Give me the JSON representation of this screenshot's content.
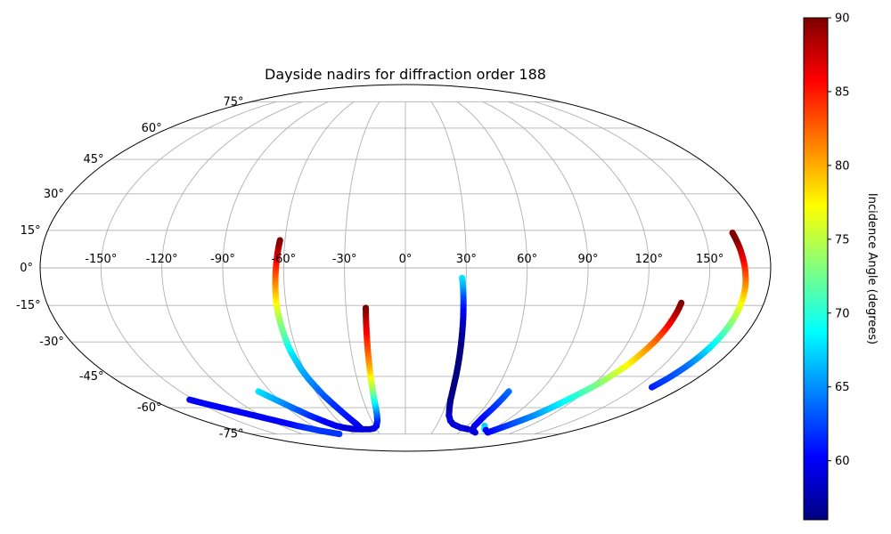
{
  "chart_data": {
    "type": "scatter",
    "projection": "mollweide",
    "title": "Dayside nadirs for diffraction order 188",
    "grid": true,
    "x_ticks": [
      "-150°",
      "-120°",
      "-90°",
      "-60°",
      "-30°",
      "0°",
      "30°",
      "60°",
      "90°",
      "120°",
      "150°"
    ],
    "y_ticks": [
      "75°",
      "60°",
      "45°",
      "30°",
      "15°",
      "0°",
      "-15°",
      "-30°",
      "-45°",
      "-60°",
      "-75°"
    ],
    "xlim": [
      -180,
      180
    ],
    "ylim": [
      -90,
      90
    ],
    "colorbar": {
      "label": "Incidence Angle (degrees)",
      "range": [
        56,
        90
      ],
      "ticks": [
        "60",
        "65",
        "70",
        "75",
        "80",
        "85",
        "90"
      ],
      "colormap": "jet"
    },
    "tracks": [
      {
        "points": [
          [
            -153,
            -56,
            60
          ],
          [
            -147,
            -58,
            60
          ],
          [
            -140,
            -60,
            60
          ],
          [
            -133,
            -62,
            60
          ],
          [
            -126,
            -64,
            60
          ],
          [
            -119,
            -66,
            60
          ],
          [
            -112,
            -68,
            60
          ],
          [
            -105,
            -70,
            61
          ],
          [
            -98,
            -71.5,
            62
          ],
          [
            -91,
            -73,
            62
          ],
          [
            -84,
            -74,
            62
          ],
          [
            -77,
            -75,
            62
          ]
        ]
      },
      {
        "points": [
          [
            -98,
            -52,
            68
          ],
          [
            -95,
            -54,
            67
          ],
          [
            -92,
            -56,
            66
          ],
          [
            -89,
            -58,
            65
          ],
          [
            -86,
            -60,
            64
          ],
          [
            -83,
            -62,
            63
          ],
          [
            -80,
            -64,
            62
          ],
          [
            -76,
            -66,
            61
          ],
          [
            -72,
            -68,
            60
          ],
          [
            -67,
            -70,
            60
          ],
          [
            -62,
            -71,
            59
          ],
          [
            -57,
            -71.5,
            59
          ],
          [
            -52,
            -72,
            59
          ],
          [
            -47,
            -72,
            59
          ],
          [
            -42,
            -72,
            59
          ],
          [
            -37,
            -72,
            59
          ],
          [
            -32,
            -71.5,
            59
          ],
          [
            -28,
            -70,
            60
          ],
          [
            -25,
            -67,
            61
          ],
          [
            -23.5,
            -64,
            63
          ],
          [
            -22.5,
            -60,
            66
          ],
          [
            -22,
            -55,
            70
          ],
          [
            -21.5,
            -50,
            74
          ],
          [
            -21.3,
            -45,
            77
          ],
          [
            -21,
            -40,
            80
          ],
          [
            -20.8,
            -35,
            82
          ],
          [
            -20.6,
            -30,
            84
          ],
          [
            -20.4,
            -25,
            86
          ],
          [
            -20.2,
            -20,
            88
          ],
          [
            -20,
            -16,
            90
          ]
        ]
      },
      {
        "points": [
          [
            -45,
            -72,
            59
          ],
          [
            -46,
            -69,
            59.5
          ],
          [
            -48,
            -66,
            60.5
          ],
          [
            -50,
            -63,
            61
          ],
          [
            -52,
            -60,
            61.5
          ],
          [
            -54,
            -57,
            62
          ],
          [
            -56,
            -54,
            63
          ],
          [
            -58,
            -50,
            64
          ],
          [
            -60,
            -46,
            65
          ],
          [
            -61.5,
            -42,
            66
          ],
          [
            -62.5,
            -38,
            67
          ],
          [
            -63.5,
            -34,
            68
          ],
          [
            -64,
            -30,
            70
          ],
          [
            -64.3,
            -26,
            72
          ],
          [
            -64.6,
            -22,
            73
          ],
          [
            -64.8,
            -18,
            75
          ],
          [
            -64.8,
            -14,
            77
          ],
          [
            -64.6,
            -10,
            79
          ],
          [
            -64.3,
            -6,
            81
          ],
          [
            -64,
            -2,
            83
          ],
          [
            -63.6,
            2,
            85
          ],
          [
            -63.2,
            6,
            87
          ],
          [
            -62.8,
            9,
            89
          ],
          [
            -62.5,
            11,
            90
          ]
        ]
      },
      {
        "points": [
          [
            28,
            -4,
            68
          ],
          [
            28.6,
            -8,
            66
          ],
          [
            29,
            -12,
            63
          ],
          [
            29.3,
            -16,
            61
          ],
          [
            29.6,
            -20,
            59
          ],
          [
            29.8,
            -24,
            58
          ],
          [
            30,
            -28,
            57
          ],
          [
            30.2,
            -32,
            56
          ],
          [
            30.4,
            -36,
            56
          ],
          [
            30.6,
            -40,
            56
          ],
          [
            30.8,
            -44,
            56
          ],
          [
            31,
            -48,
            56
          ],
          [
            31.4,
            -52,
            56
          ],
          [
            32,
            -56,
            56
          ],
          [
            33.5,
            -60,
            57
          ],
          [
            36,
            -64,
            58
          ],
          [
            40,
            -67,
            59
          ],
          [
            45,
            -69,
            59
          ],
          [
            50,
            -70,
            59
          ],
          [
            55,
            -71,
            59
          ],
          [
            60,
            -71.5,
            59
          ],
          [
            65,
            -72,
            59
          ]
        ]
      },
      {
        "points": [
          [
            69,
            -52,
            64
          ],
          [
            68.5,
            -54,
            63.5
          ],
          [
            68,
            -56,
            63
          ],
          [
            67.5,
            -58,
            62.5
          ],
          [
            67,
            -60,
            62
          ],
          [
            66.5,
            -62,
            61.5
          ],
          [
            66,
            -64,
            61
          ],
          [
            66,
            -66,
            60.5
          ],
          [
            66.5,
            -68,
            60
          ],
          [
            67,
            -70,
            60
          ],
          [
            70,
            -72,
            59
          ],
          [
            72,
            -73,
            59
          ],
          [
            75,
            -73.5,
            59
          ],
          [
            78,
            -74,
            59
          ]
        ]
      },
      {
        "points": [
          [
            77,
            -70,
            67
          ],
          [
            82,
            -72,
            68
          ],
          [
            85,
            -72.5,
            60
          ]
        ]
      },
      {
        "points": [
          [
            92,
            -74,
            60
          ],
          [
            95,
            -72,
            61
          ],
          [
            98,
            -70,
            62
          ],
          [
            101,
            -68,
            63
          ],
          [
            104,
            -66,
            64
          ],
          [
            107,
            -64,
            65
          ],
          [
            109,
            -62,
            66
          ],
          [
            111,
            -60,
            67
          ],
          [
            113,
            -58,
            68
          ],
          [
            115,
            -56,
            69
          ],
          [
            117,
            -54,
            70
          ],
          [
            119,
            -52,
            71
          ],
          [
            121,
            -50,
            72
          ],
          [
            123,
            -48,
            73
          ],
          [
            124.5,
            -46,
            74
          ],
          [
            126,
            -44,
            75
          ],
          [
            127.5,
            -42,
            76
          ],
          [
            129,
            -40,
            77
          ],
          [
            130,
            -38,
            78
          ],
          [
            131,
            -36,
            79
          ],
          [
            132,
            -34,
            80
          ],
          [
            133,
            -32,
            81
          ],
          [
            134,
            -30,
            82
          ],
          [
            134.8,
            -28,
            83
          ],
          [
            135.5,
            -26,
            84
          ],
          [
            136.2,
            -24,
            85
          ],
          [
            136.8,
            -22,
            86
          ],
          [
            137.3,
            -20,
            87
          ],
          [
            137.8,
            -18,
            88
          ],
          [
            138.2,
            -16,
            89
          ],
          [
            138.5,
            -14,
            90
          ]
        ]
      },
      {
        "points": [
          [
            160,
            -50,
            61
          ],
          [
            161,
            -48,
            62
          ],
          [
            162,
            -46,
            62.5
          ],
          [
            162.8,
            -44,
            63
          ],
          [
            163.6,
            -42,
            63.5
          ],
          [
            164.3,
            -40,
            64
          ],
          [
            165,
            -38,
            65
          ],
          [
            165.6,
            -36,
            66
          ],
          [
            166.1,
            -34,
            67
          ],
          [
            166.6,
            -32,
            68
          ],
          [
            167,
            -30,
            69
          ],
          [
            167.4,
            -28,
            70
          ],
          [
            167.7,
            -26,
            71
          ],
          [
            168,
            -24,
            72
          ],
          [
            168.2,
            -22,
            73
          ],
          [
            168.4,
            -20,
            74
          ],
          [
            168.5,
            -18,
            75
          ],
          [
            168.6,
            -16,
            76
          ],
          [
            168.6,
            -14,
            77
          ],
          [
            168.6,
            -12,
            78
          ],
          [
            168.5,
            -10,
            79
          ],
          [
            168.4,
            -8,
            80
          ],
          [
            168.2,
            -6,
            81
          ],
          [
            167.9,
            -4,
            82
          ],
          [
            167.6,
            -2,
            83
          ],
          [
            167.3,
            0,
            84
          ],
          [
            166.9,
            2,
            85
          ],
          [
            166.5,
            4,
            86
          ],
          [
            166.1,
            6,
            87
          ],
          [
            165.7,
            8,
            88
          ],
          [
            165.2,
            10,
            89
          ],
          [
            164.7,
            12,
            90
          ],
          [
            164.2,
            14,
            90
          ]
        ]
      }
    ]
  }
}
